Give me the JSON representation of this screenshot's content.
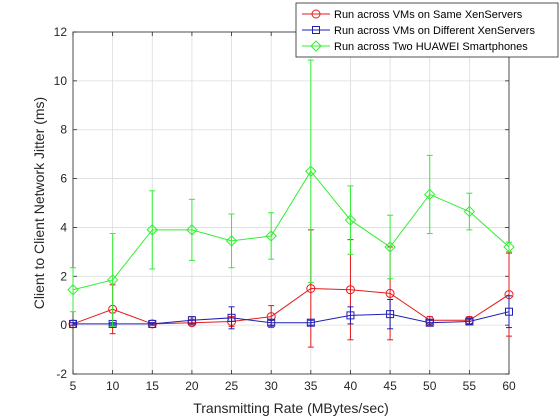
{
  "chart_data": {
    "type": "line",
    "title": "",
    "xlabel": "Transmitting Rate (MBytes/sec)",
    "ylabel": "Client to Client Network Jitter (ms)",
    "xlim": [
      5,
      60
    ],
    "ylim": [
      -2,
      12
    ],
    "xticks": [
      "5",
      "10",
      "15",
      "20",
      "25",
      "30",
      "35",
      "40",
      "45",
      "50",
      "55",
      "60"
    ],
    "yticks": [
      "-2",
      "0",
      "2",
      "4",
      "6",
      "8",
      "10",
      "12"
    ],
    "grid": true,
    "legend_position": "top-right",
    "x": [
      5,
      10,
      15,
      20,
      25,
      30,
      35,
      40,
      45,
      50,
      55,
      60
    ],
    "series": [
      {
        "name": "Run across VMs on Same XenServers",
        "marker": "circle",
        "color": "#e41a1c",
        "values": [
          0.05,
          0.65,
          0.05,
          0.1,
          0.15,
          0.35,
          1.5,
          1.45,
          1.3,
          0.2,
          0.2,
          1.25
        ],
        "error": [
          0.05,
          1.0,
          0.05,
          0.1,
          0.2,
          0.45,
          2.4,
          2.05,
          1.9,
          0.15,
          0.15,
          1.7
        ]
      },
      {
        "name": "Run across VMs on Different XenServers",
        "marker": "square",
        "color": "#1f1fb4",
        "values": [
          0.05,
          0.05,
          0.05,
          0.2,
          0.3,
          0.1,
          0.1,
          0.4,
          0.45,
          0.1,
          0.15,
          0.55
        ],
        "error": [
          0.05,
          0.05,
          0.05,
          0.15,
          0.45,
          0.1,
          0.1,
          0.35,
          0.6,
          0.1,
          0.1,
          0.65
        ]
      },
      {
        "name": "Run across Two HUAWEI Smartphones",
        "marker": "diamond",
        "color": "#33ee33",
        "values": [
          1.45,
          1.85,
          3.9,
          3.9,
          3.45,
          3.65,
          6.3,
          4.3,
          3.2,
          5.35,
          4.65,
          3.2
        ],
        "error": [
          0.9,
          1.9,
          1.6,
          1.25,
          1.1,
          0.95,
          4.55,
          1.4,
          1.3,
          1.6,
          0.75,
          0.2
        ]
      }
    ]
  }
}
